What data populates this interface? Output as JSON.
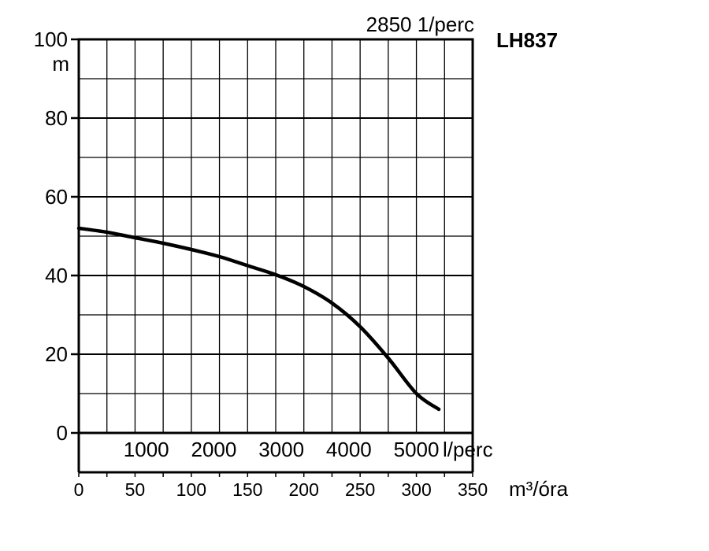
{
  "chart_data": {
    "type": "line",
    "title": "LH837",
    "subtitle": "2850 1/perc",
    "ylabel": "m",
    "ylim": [
      0,
      100
    ],
    "y_ticks": [
      "0",
      "20",
      "40",
      "60",
      "80",
      "100"
    ],
    "x_primary": {
      "label": "m³/óra",
      "lim": [
        0,
        350
      ],
      "ticks": [
        "0",
        "50",
        "100",
        "150",
        "200",
        "250",
        "300",
        "350"
      ]
    },
    "x_secondary": {
      "unit": "l/perc",
      "ticks": [
        "1000",
        "2000",
        "3000",
        "4000",
        "5000"
      ],
      "tick_values": [
        1000,
        2000,
        3000,
        4000,
        5000
      ]
    },
    "grid": true,
    "series": [
      {
        "x": [
          0,
          25,
          50,
          75,
          100,
          125,
          150,
          175,
          200,
          225,
          250,
          275,
          300,
          320
        ],
        "y": [
          52,
          51,
          49.6,
          48.2,
          46.6,
          44.8,
          42.5,
          40.2,
          37.2,
          33,
          27,
          19,
          10,
          6
        ]
      }
    ]
  }
}
